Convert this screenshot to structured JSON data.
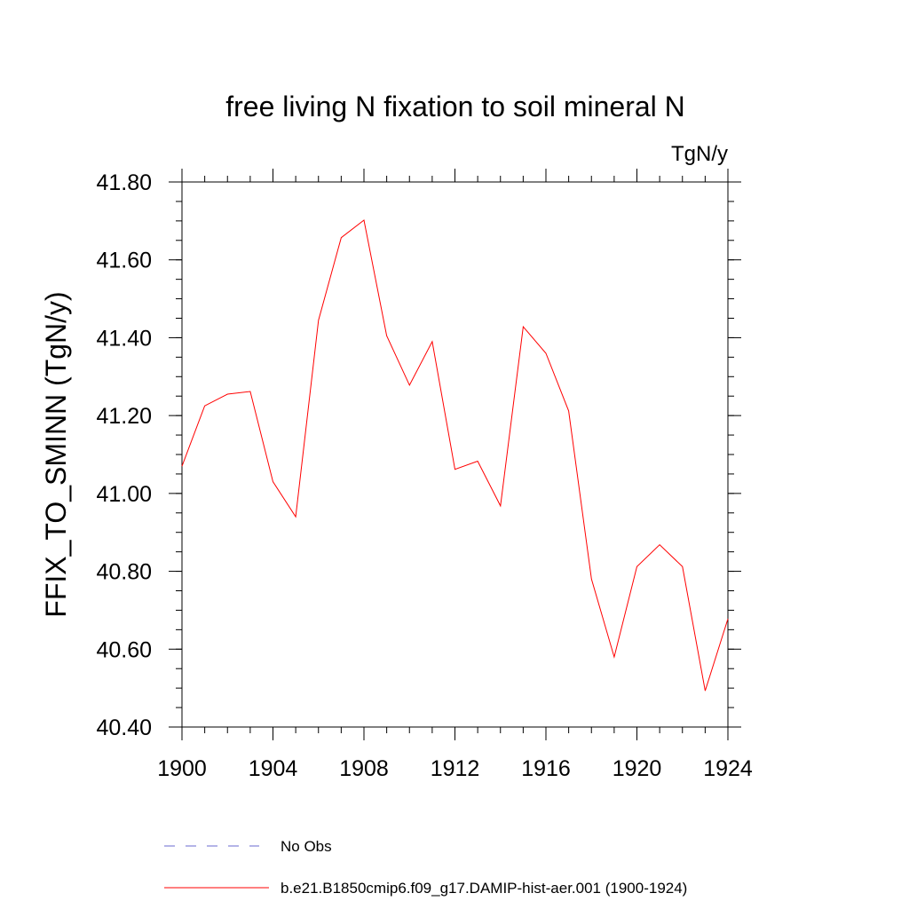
{
  "chart_data": {
    "type": "line",
    "title": "free living N fixation to soil mineral N",
    "units_label": "TgN/y",
    "ylabel": "FFIX_TO_SMINN  (TgN/y)",
    "xlabel": "",
    "xlim": [
      1900,
      1924
    ],
    "ylim": [
      40.4,
      41.8
    ],
    "x_ticks": [
      "1900",
      "1904",
      "1908",
      "1912",
      "1916",
      "1920",
      "1924"
    ],
    "y_ticks": [
      "40.40",
      "40.60",
      "40.80",
      "41.00",
      "41.20",
      "41.40",
      "41.60",
      "41.80"
    ],
    "grid": false,
    "legend_position": "bottom",
    "series": [
      {
        "name": "b.e21.B1850cmip6.f09_g17.DAMIP-hist-aer.001 (1900-1924)",
        "color": "#ff0000",
        "dash": "solid",
        "x": [
          1900,
          1901,
          1902,
          1903,
          1904,
          1905,
          1906,
          1907,
          1908,
          1909,
          1910,
          1911,
          1912,
          1913,
          1914,
          1915,
          1916,
          1917,
          1918,
          1919,
          1920,
          1921,
          1922,
          1923,
          1924
        ],
        "y": [
          41.07,
          41.225,
          41.255,
          41.262,
          41.03,
          40.94,
          41.445,
          41.657,
          41.702,
          41.405,
          41.278,
          41.39,
          41.062,
          41.083,
          40.968,
          41.428,
          41.36,
          41.212,
          40.78,
          40.58,
          40.812,
          40.868,
          40.812,
          40.493,
          40.678
        ]
      }
    ],
    "legend": [
      {
        "label": "No Obs",
        "color": "#6a6ad0",
        "dash": "dashed"
      },
      {
        "label": "b.e21.B1850cmip6.f09_g17.DAMIP-hist-aer.001 (1900-1924)",
        "color": "#ff0000",
        "dash": "solid"
      }
    ]
  }
}
